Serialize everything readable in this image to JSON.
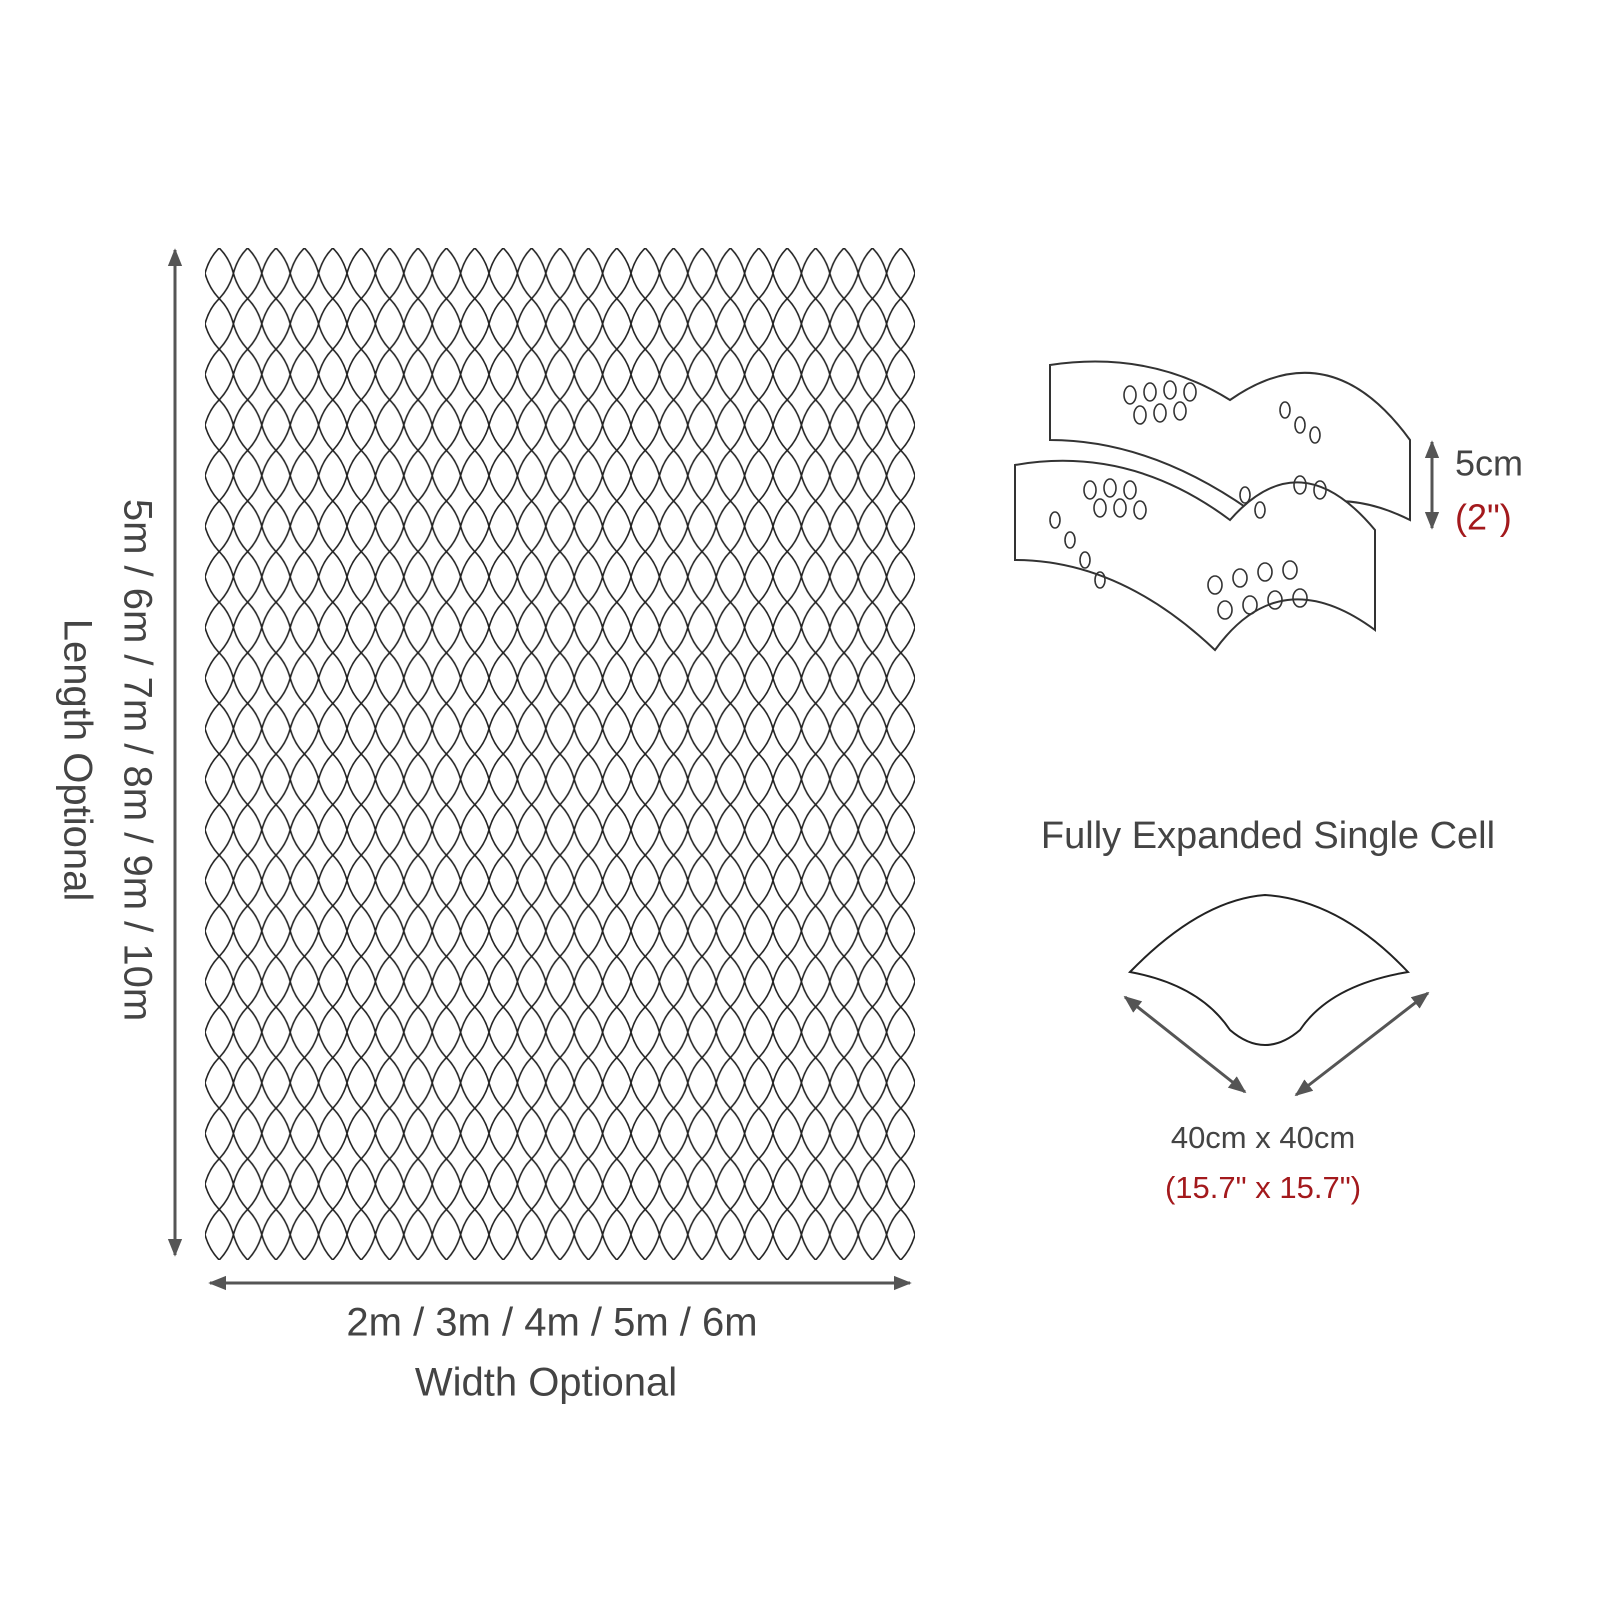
{
  "mesh": {
    "length_sizes": "5m / 6m / 7m / 8m / 9m / 10m",
    "length_label": "Length Optional",
    "width_sizes": "2m / 3m / 4m / 5m / 6m",
    "width_label": "Width Optional"
  },
  "cell_height": {
    "metric": "5cm",
    "imperial": "(2\")"
  },
  "single_cell": {
    "title": "Fully Expanded Single Cell",
    "metric": "40cm x 40cm",
    "imperial": "(15.7\" x 15.7\")"
  }
}
